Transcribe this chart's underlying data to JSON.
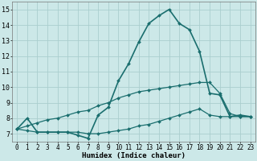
{
  "xlabel": "Humidex (Indice chaleur)",
  "bg_color": "#cce8e8",
  "grid_color": "#aacece",
  "line_color": "#1a6e6e",
  "xlim": [
    -0.5,
    23.5
  ],
  "ylim": [
    6.5,
    15.5
  ],
  "xticks": [
    0,
    1,
    2,
    3,
    4,
    5,
    6,
    7,
    8,
    9,
    10,
    11,
    12,
    13,
    14,
    15,
    16,
    17,
    18,
    19,
    20,
    21,
    22,
    23
  ],
  "yticks": [
    7,
    8,
    9,
    10,
    11,
    12,
    13,
    14,
    15
  ],
  "series1_x": [
    0,
    1,
    2,
    3,
    4,
    5,
    6,
    7,
    8,
    9,
    10,
    11,
    12,
    13,
    14,
    15,
    16,
    17,
    18,
    19,
    20,
    21,
    22,
    23
  ],
  "series1_y": [
    7.3,
    8.0,
    7.1,
    7.1,
    7.1,
    7.1,
    6.9,
    6.7,
    8.2,
    8.7,
    10.4,
    11.5,
    12.9,
    14.1,
    14.6,
    15.0,
    14.1,
    13.7,
    12.3,
    9.6,
    9.5,
    8.1,
    8.2,
    8.1
  ],
  "series2_x": [
    0,
    1,
    2,
    3,
    4,
    5,
    6,
    7,
    8,
    9,
    10,
    11,
    12,
    13,
    14,
    15,
    16,
    17,
    18,
    19,
    20,
    21,
    22,
    23
  ],
  "series2_y": [
    7.3,
    7.2,
    7.1,
    7.1,
    7.1,
    7.1,
    7.1,
    7.0,
    7.0,
    7.1,
    7.2,
    7.3,
    7.5,
    7.6,
    7.8,
    8.0,
    8.2,
    8.4,
    8.6,
    8.2,
    8.1,
    8.1,
    8.1,
    8.1
  ],
  "series3_x": [
    0,
    1,
    2,
    3,
    4,
    5,
    6,
    7,
    8,
    9,
    10,
    11,
    12,
    13,
    14,
    15,
    16,
    17,
    18,
    19,
    20,
    21,
    22,
    23
  ],
  "series3_y": [
    7.3,
    7.5,
    7.7,
    7.9,
    8.0,
    8.2,
    8.4,
    8.5,
    8.8,
    9.0,
    9.3,
    9.5,
    9.7,
    9.8,
    9.9,
    10.0,
    10.1,
    10.2,
    10.3,
    10.3,
    9.6,
    8.3,
    8.1,
    8.1
  ],
  "tick_fontsize": 5.5,
  "xlabel_fontsize": 6.5,
  "marker_size": 2.0,
  "linewidth1": 1.2,
  "linewidth2": 0.9
}
